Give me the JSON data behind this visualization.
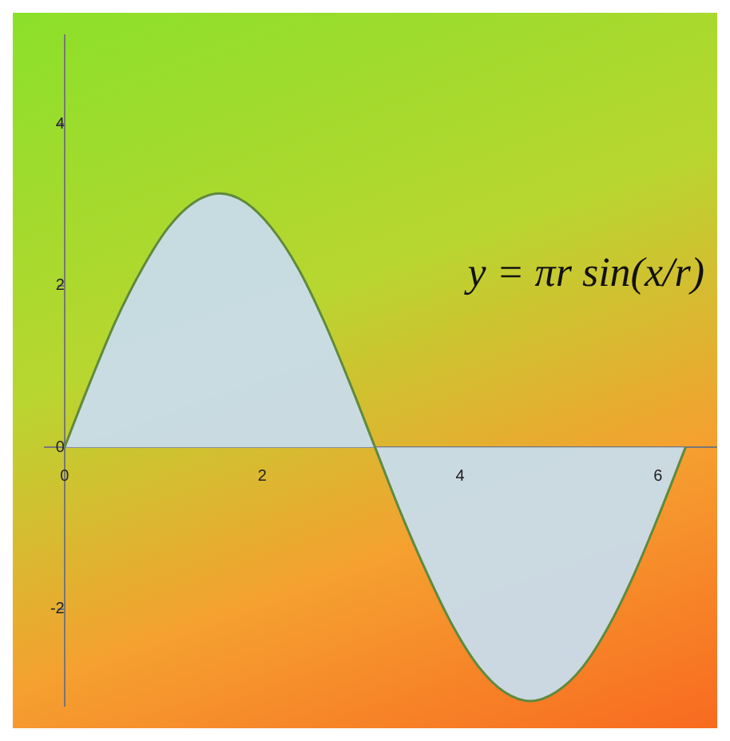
{
  "chart_data": {
    "type": "area",
    "x": [
      0,
      0.26,
      0.52,
      0.79,
      1.05,
      1.31,
      1.57,
      1.83,
      2.09,
      2.36,
      2.62,
      2.88,
      3.14,
      3.4,
      3.67,
      3.93,
      4.19,
      4.45,
      4.71,
      4.97,
      5.24,
      5.5,
      5.76,
      6.02,
      6.28
    ],
    "series": [
      {
        "color": "#5f8a3c",
        "values": [
          0,
          0.81,
          1.57,
          2.22,
          2.72,
          3.03,
          3.14,
          3.03,
          2.72,
          2.22,
          1.57,
          0.81,
          0,
          -0.81,
          -1.57,
          -2.22,
          -2.72,
          -3.03,
          -3.14,
          -3.03,
          -2.72,
          -2.22,
          -1.57,
          -0.81,
          0
        ]
      }
    ],
    "xlim": [
      -0.2,
      6.6
    ],
    "ylim": [
      -3.2,
      5.1
    ],
    "xticks": [
      0,
      2,
      4,
      6
    ],
    "yticks": [
      -2,
      0,
      2,
      4
    ],
    "grid": false,
    "legend": false,
    "annotations": [
      "y = πr sin(x/r)"
    ]
  }
}
